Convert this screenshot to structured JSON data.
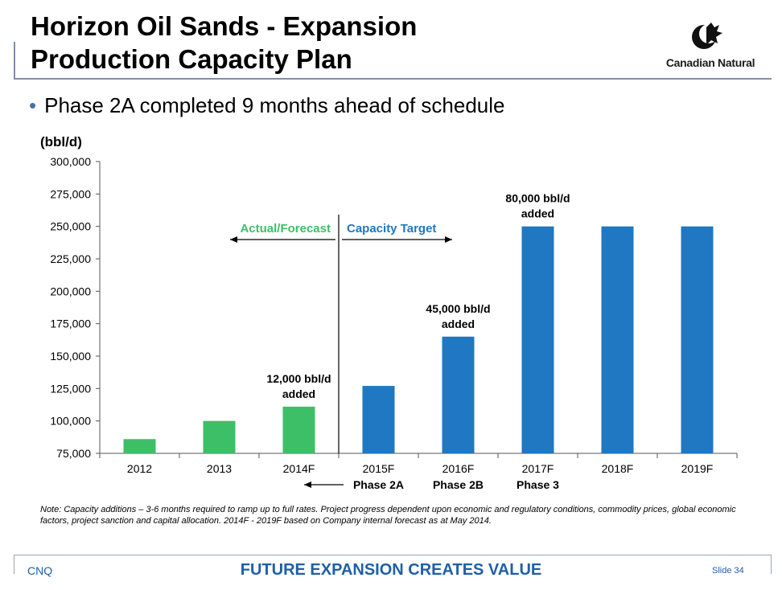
{
  "slide": {
    "title_line1": "Horizon Oil Sands - Expansion",
    "title_line2": "Production Capacity Plan",
    "logo_text": "Canadian Natural",
    "bullet": "Phase 2A completed 9 months ahead of schedule",
    "note": "Note: Capacity additions – 3-6 months required to ramp up to full rates. Project progress dependent upon economic and regulatory conditions, commodity prices, global economic factors, project sanction and capital allocation. 2014F - 2019F based on Company internal forecast as at May 2014.",
    "footer_left": "CNQ",
    "footer_center": "FUTURE EXPANSION CREATES VALUE",
    "footer_right": "Slide 34"
  },
  "colors": {
    "actual": "#3dbf68",
    "forecast": "#1f78c1",
    "accent_text": "#1f5fa8"
  },
  "chart_data": {
    "type": "bar",
    "ylabel": "(bbl/d)",
    "ylim": [
      75000,
      300000
    ],
    "ytick_step": 25000,
    "ytick_labels": [
      "75,000",
      "100,000",
      "125,000",
      "150,000",
      "175,000",
      "200,000",
      "225,000",
      "250,000",
      "275,000",
      "300,000"
    ],
    "grid": false,
    "categories": [
      "2012",
      "2013",
      "2014F",
      "2015F",
      "2016F",
      "2017F",
      "2018F",
      "2019F"
    ],
    "values": [
      86000,
      100000,
      111000,
      127000,
      165000,
      250000,
      250000,
      250000
    ],
    "bar_groups": [
      "actual",
      "actual",
      "actual",
      "forecast",
      "forecast",
      "forecast",
      "forecast",
      "forecast"
    ],
    "legend": {
      "left": "Actual/Forecast",
      "right": "Capacity Target"
    },
    "annotations": [
      {
        "category_index": 2,
        "line1": "12,000 bbl/d",
        "line2": "added"
      },
      {
        "category_index": 4,
        "line1": "45,000 bbl/d",
        "line2": "added"
      },
      {
        "category_index": 5,
        "line1": "80,000 bbl/d",
        "line2": "added"
      }
    ],
    "phase_labels": [
      {
        "category_index": 3,
        "text": "Phase 2A",
        "arrow": true
      },
      {
        "category_index": 4,
        "text": "Phase 2B",
        "arrow": false
      },
      {
        "category_index": 5,
        "text": "Phase 3",
        "arrow": false
      }
    ]
  }
}
